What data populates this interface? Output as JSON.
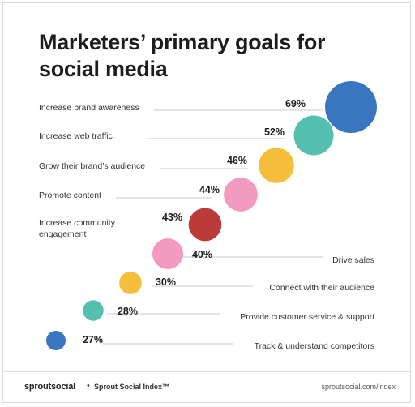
{
  "title": "Marketers’ primary goals for social media",
  "footer": {
    "logo": "sproutsocial",
    "separator": "•",
    "index_label": "Sprout Social Index™",
    "url": "sproutsocial.com/index"
  },
  "chart_data": {
    "type": "bubble",
    "title": "Marketers’ primary goals for social media",
    "categories": [
      "Increase brand awareness",
      "Increase web traffic",
      "Grow their brand’s audience",
      "Promote content",
      "Increase community engagement",
      "Drive sales",
      "Connect with their audience",
      "Provide customer service & support",
      "Track & understand competitors"
    ],
    "values": [
      69,
      52,
      46,
      44,
      43,
      40,
      30,
      28,
      27
    ],
    "value_labels": [
      "69%",
      "52%",
      "46%",
      "44%",
      "43%",
      "40%",
      "30%",
      "28%",
      "27%"
    ],
    "colors": [
      "#3a76c0",
      "#56c0b0",
      "#f5bf3c",
      "#f29ac0",
      "#bb3b3b",
      "#f29ac0",
      "#f5bf3c",
      "#56c0b0",
      "#3a76c0"
    ],
    "label_side": [
      "left",
      "left",
      "left",
      "left",
      "left",
      "right",
      "right",
      "right",
      "right"
    ],
    "legend": "none",
    "grid": false
  }
}
